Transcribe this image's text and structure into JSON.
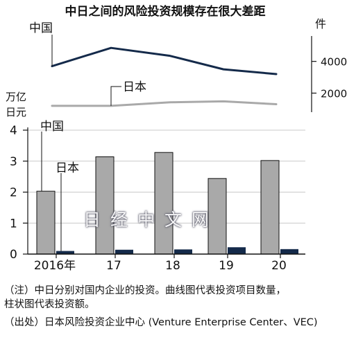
{
  "chart_data": {
    "title": "中日之间的风险投资规模存在很大差距",
    "categories": [
      "2016年",
      "17",
      "18",
      "19",
      "20"
    ],
    "line": {
      "type": "line",
      "unit": "件",
      "yticks": [
        "4000",
        "2000"
      ],
      "ytick_values": [
        4000,
        2000
      ],
      "ylim": [
        800,
        5600
      ],
      "series": [
        {
          "name": "中国",
          "color": "#142a4a",
          "values": [
            3700,
            4850,
            4350,
            3500,
            3200
          ]
        },
        {
          "name": "日本",
          "color": "#a9a9a9",
          "values": [
            1200,
            1200,
            1420,
            1480,
            1300
          ]
        }
      ]
    },
    "bar": {
      "type": "bar",
      "ylabel_line1": "万亿",
      "ylabel_line2": "日元",
      "yticks": [
        "0",
        "1",
        "2",
        "3",
        "4"
      ],
      "ylim": [
        0,
        4
      ],
      "series": [
        {
          "name": "中国",
          "color": "#a9a9a9",
          "values": [
            2.03,
            3.14,
            3.28,
            2.44,
            3.02
          ]
        },
        {
          "name": "日本",
          "color": "#142a4a",
          "values": [
            0.1,
            0.14,
            0.15,
            0.22,
            0.16
          ]
        }
      ]
    }
  },
  "watermark": "日经中文网",
  "notes": {
    "line1": "（注）中日分别对国内企业的投资。曲线图代表投资项目数量，",
    "line2": "柱状图代表投资额。",
    "line3": "（出处）日本风险投资企业中心 (Venture Enterprise Center、VEC)"
  }
}
